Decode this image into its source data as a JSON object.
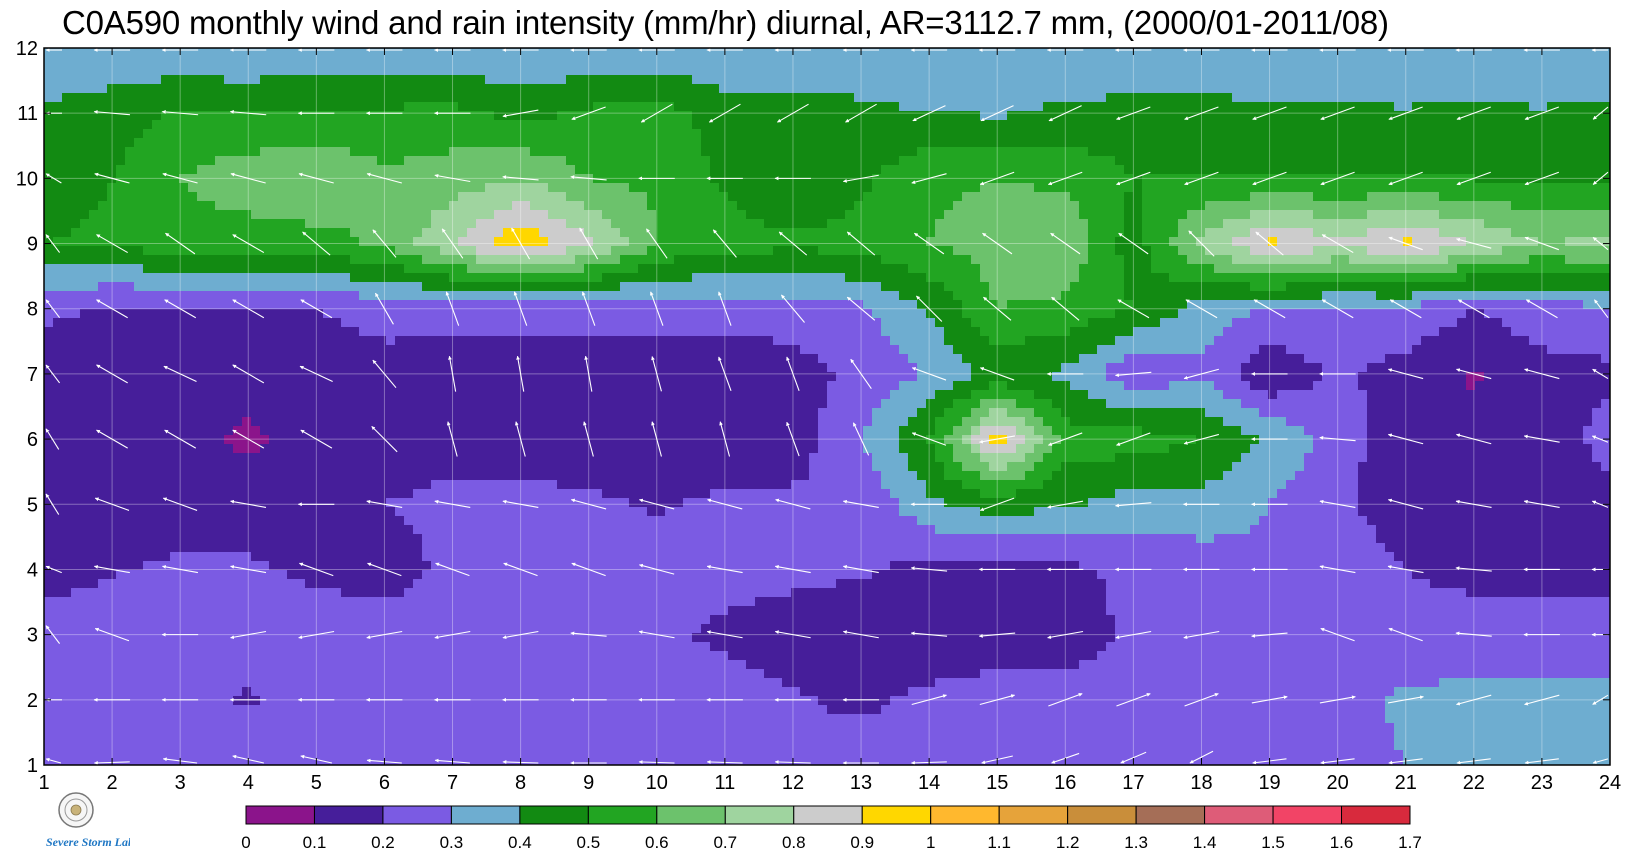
{
  "title": "C0A590 monthly wind and rain intensity (mm/hr) diurnal, AR=3112.7 mm, (2000/01-2011/08)",
  "logo": {
    "name": "severe-storm-lab-logo",
    "text": "Severe Storm Lab."
  },
  "chart_data": {
    "type": "heatmap",
    "subtype": "filled-contour-with-wind-vectors",
    "title": "C0A590 monthly wind and rain intensity (mm/hr) diurnal, AR=3112.7 mm, (2000/01-2011/08)",
    "x_ticks": [
      "1",
      "2",
      "3",
      "4",
      "5",
      "6",
      "7",
      "8",
      "9",
      "10",
      "11",
      "12",
      "13",
      "14",
      "15",
      "16",
      "17",
      "18",
      "19",
      "20",
      "21",
      "22",
      "23",
      "24"
    ],
    "y_ticks": [
      "1",
      "2",
      "3",
      "4",
      "5",
      "6",
      "7",
      "8",
      "9",
      "10",
      "11",
      "12"
    ],
    "xlim": [
      1,
      24
    ],
    "ylim": [
      1,
      12
    ],
    "grid": true,
    "colorbar": {
      "position": "bottom",
      "ticks": [
        "0",
        "0.1",
        "0.2",
        "0.3",
        "0.4",
        "0.5",
        "0.6",
        "0.7",
        "0.8",
        "0.9",
        "1",
        "1.1",
        "1.2",
        "1.3",
        "1.4",
        "1.5",
        "1.6",
        "1.7"
      ],
      "colors": [
        "#8B148B",
        "#461E9A",
        "#7B5BE3",
        "#6EADD0",
        "#128A12",
        "#22A522",
        "#6CC26C",
        "#9FD49F",
        "#CCCCCC",
        "#FFD700",
        "#FFB82E",
        "#E6A33A",
        "#C98E3A",
        "#A56E57",
        "#DE5C78",
        "#F24466",
        "#D82A3D"
      ]
    },
    "rain_intensity_rows": [
      [
        0.3,
        0.3,
        0.3,
        0.3,
        0.3,
        0.3,
        0.28,
        0.26,
        0.26,
        0.24,
        0.22,
        0.22,
        0.25,
        0.27,
        0.27,
        0.24,
        0.26,
        0.26,
        0.27,
        0.28,
        0.3,
        0.32,
        0.32,
        0.32
      ],
      [
        0.25,
        0.3,
        0.29,
        0.18,
        0.29,
        0.28,
        0.26,
        0.26,
        0.26,
        0.26,
        0.25,
        0.21,
        0.18,
        0.22,
        0.24,
        0.24,
        0.25,
        0.26,
        0.27,
        0.28,
        0.31,
        0.32,
        0.32,
        0.32
      ],
      [
        0.27,
        0.29,
        0.29,
        0.28,
        0.27,
        0.25,
        0.23,
        0.22,
        0.22,
        0.22,
        0.18,
        0.14,
        0.13,
        0.14,
        0.15,
        0.15,
        0.22,
        0.23,
        0.24,
        0.25,
        0.26,
        0.26,
        0.26,
        0.26
      ],
      [
        0.13,
        0.19,
        0.22,
        0.22,
        0.17,
        0.16,
        0.22,
        0.24,
        0.24,
        0.24,
        0.24,
        0.23,
        0.21,
        0.17,
        0.15,
        0.18,
        0.22,
        0.25,
        0.28,
        0.27,
        0.2,
        0.16,
        0.16,
        0.16
      ],
      [
        0.12,
        0.13,
        0.13,
        0.13,
        0.13,
        0.2,
        0.22,
        0.24,
        0.22,
        0.19,
        0.22,
        0.22,
        0.21,
        0.38,
        0.45,
        0.41,
        0.36,
        0.36,
        0.3,
        0.22,
        0.14,
        0.13,
        0.15,
        0.16
      ],
      [
        0.11,
        0.11,
        0.12,
        0.09,
        0.12,
        0.16,
        0.17,
        0.14,
        0.13,
        0.14,
        0.14,
        0.15,
        0.3,
        0.5,
        0.95,
        0.55,
        0.55,
        0.5,
        0.39,
        0.25,
        0.13,
        0.13,
        0.14,
        0.24
      ],
      [
        0.12,
        0.12,
        0.12,
        0.12,
        0.13,
        0.16,
        0.15,
        0.14,
        0.13,
        0.13,
        0.13,
        0.16,
        0.22,
        0.31,
        0.42,
        0.38,
        0.22,
        0.28,
        0.11,
        0.22,
        0.16,
        0.09,
        0.16,
        0.18
      ],
      [
        0.23,
        0.18,
        0.18,
        0.19,
        0.2,
        0.24,
        0.24,
        0.24,
        0.24,
        0.24,
        0.24,
        0.25,
        0.28,
        0.41,
        0.6,
        0.58,
        0.5,
        0.35,
        0.3,
        0.28,
        0.28,
        0.2,
        0.26,
        0.28
      ],
      [
        0.5,
        0.52,
        0.56,
        0.55,
        0.56,
        0.62,
        0.79,
        0.98,
        0.82,
        0.6,
        0.55,
        0.52,
        0.54,
        0.6,
        0.65,
        0.68,
        0.45,
        0.72,
        0.92,
        0.82,
        0.92,
        0.8,
        0.7,
        0.72
      ],
      [
        0.45,
        0.5,
        0.6,
        0.66,
        0.7,
        0.62,
        0.65,
        0.7,
        0.6,
        0.58,
        0.48,
        0.4,
        0.48,
        0.58,
        0.6,
        0.58,
        0.5,
        0.5,
        0.5,
        0.5,
        0.5,
        0.5,
        0.49,
        0.48
      ],
      [
        0.42,
        0.45,
        0.52,
        0.5,
        0.52,
        0.52,
        0.53,
        0.47,
        0.52,
        0.55,
        0.45,
        0.46,
        0.43,
        0.4,
        0.39,
        0.42,
        0.44,
        0.43,
        0.43,
        0.42,
        0.41,
        0.42,
        0.41,
        0.43
      ],
      [
        0.3,
        0.32,
        0.3,
        0.3,
        0.31,
        0.3,
        0.3,
        0.31,
        0.3,
        0.31,
        0.3,
        0.3,
        0.3,
        0.3,
        0.3,
        0.3,
        0.3,
        0.31,
        0.3,
        0.3,
        0.3,
        0.31,
        0.3,
        0.3
      ]
    ],
    "wind_direction_deg_rows": [
      [
        160,
        190,
        160,
        150,
        150,
        165,
        165,
        170,
        180,
        170,
        170,
        170,
        175,
        190,
        210,
        220,
        225,
        230,
        200,
        200,
        200,
        200,
        200,
        200
      ],
      [
        180,
        180,
        180,
        180,
        180,
        180,
        180,
        180,
        180,
        180,
        180,
        180,
        180,
        15,
        15,
        20,
        20,
        20,
        10,
        10,
        10,
        195,
        195,
        195
      ],
      [
        150,
        160,
        180,
        190,
        190,
        190,
        190,
        190,
        175,
        170,
        170,
        170,
        170,
        175,
        185,
        190,
        190,
        190,
        185,
        160,
        160,
        175,
        180,
        180
      ],
      [
        170,
        170,
        170,
        170,
        160,
        160,
        160,
        160,
        160,
        165,
        170,
        170,
        170,
        175,
        180,
        180,
        180,
        180,
        180,
        170,
        170,
        175,
        180,
        180
      ],
      [
        145,
        160,
        160,
        170,
        180,
        170,
        170,
        170,
        165,
        165,
        165,
        165,
        170,
        180,
        200,
        190,
        185,
        180,
        180,
        170,
        165,
        170,
        170,
        170
      ],
      [
        145,
        150,
        150,
        150,
        150,
        135,
        105,
        105,
        105,
        105,
        105,
        110,
        115,
        160,
        190,
        200,
        200,
        195,
        180,
        175,
        165,
        165,
        170,
        170
      ],
      [
        150,
        150,
        155,
        150,
        155,
        130,
        100,
        100,
        100,
        105,
        110,
        110,
        125,
        160,
        160,
        180,
        185,
        195,
        180,
        180,
        165,
        165,
        165,
        165
      ],
      [
        150,
        150,
        150,
        150,
        150,
        120,
        110,
        110,
        110,
        110,
        110,
        130,
        140,
        135,
        140,
        140,
        150,
        150,
        150,
        150,
        150,
        150,
        150,
        150
      ],
      [
        150,
        150,
        145,
        150,
        140,
        130,
        125,
        120,
        120,
        125,
        130,
        140,
        140,
        145,
        145,
        145,
        145,
        135,
        140,
        150,
        160,
        165,
        160,
        160
      ],
      [
        165,
        165,
        165,
        165,
        165,
        165,
        170,
        175,
        175,
        180,
        180,
        180,
        190,
        195,
        200,
        200,
        200,
        200,
        200,
        200,
        200,
        200,
        200,
        200
      ],
      [
        180,
        175,
        175,
        175,
        180,
        180,
        180,
        190,
        200,
        210,
        210,
        210,
        210,
        205,
        205,
        205,
        200,
        200,
        200,
        200,
        200,
        200,
        200,
        200
      ],
      [
        180,
        180,
        180,
        180,
        180,
        180,
        180,
        180,
        180,
        180,
        180,
        180,
        180,
        180,
        180,
        180,
        180,
        180,
        180,
        180,
        180,
        180,
        180,
        180
      ]
    ]
  }
}
